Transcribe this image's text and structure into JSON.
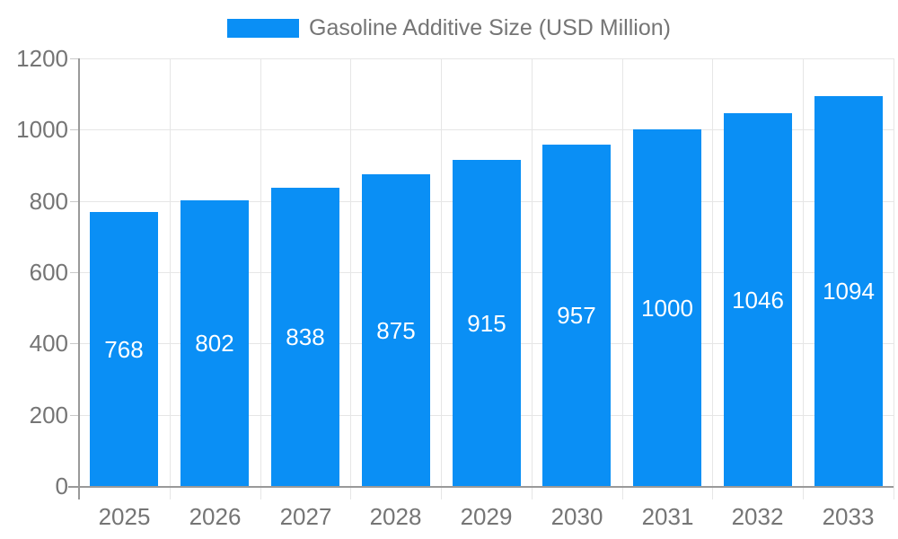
{
  "legend": {
    "series_label": "Gasoline Additive Size (USD Million)"
  },
  "chart_data": {
    "type": "bar",
    "title": "",
    "categories": [
      "2025",
      "2026",
      "2027",
      "2028",
      "2029",
      "2030",
      "2031",
      "2032",
      "2033"
    ],
    "series": [
      {
        "name": "Gasoline Additive Size (USD Million)",
        "values": [
          768,
          802,
          838,
          875,
          915,
          957,
          1000,
          1046,
          1094
        ]
      }
    ],
    "xlabel": "",
    "ylabel": "",
    "ylim": [
      0,
      1200
    ],
    "yticks": [
      0,
      200,
      400,
      600,
      800,
      1000,
      1200
    ],
    "grid": true,
    "legend_position": "top-center",
    "value_labels": "inside-center",
    "colors": {
      "bar": "#0a8ff5",
      "bar_label": "#ffffff",
      "gridline": "#e6e6e6",
      "axis_line": "#999999",
      "tick_mark": "#c9c9c9",
      "tick_label": "#757575",
      "background": "#ffffff"
    }
  }
}
